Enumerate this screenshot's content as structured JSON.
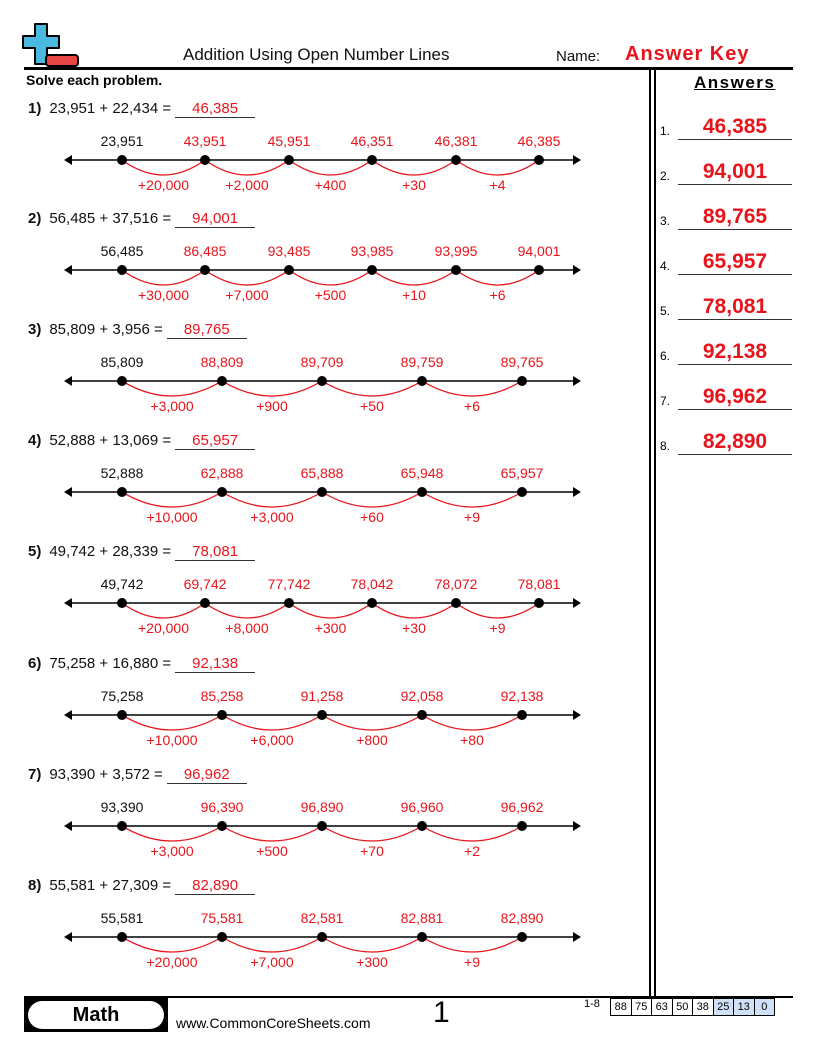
{
  "header": {
    "title": "Addition Using Open Number Lines",
    "name_label": "Name:",
    "name_value": "Answer Key",
    "instructions": "Solve each problem.",
    "answers_heading": "Answers"
  },
  "colors": {
    "accent": "#e8141b",
    "logo_blue": "#4bb8e0",
    "logo_red": "#e84545"
  },
  "problems": [
    {
      "num": "1)",
      "expr": "23,951 + 22,434 =",
      "answer": "46,385",
      "points": [
        "23,951",
        "43,951",
        "45,951",
        "46,351",
        "46,381",
        "46,385"
      ],
      "steps": [
        "+20,000",
        "+2,000",
        "+400",
        "+30",
        "+4"
      ]
    },
    {
      "num": "2)",
      "expr": "56,485 + 37,516 =",
      "answer": "94,001",
      "points": [
        "56,485",
        "86,485",
        "93,485",
        "93,985",
        "93,995",
        "94,001"
      ],
      "steps": [
        "+30,000",
        "+7,000",
        "+500",
        "+10",
        "+6"
      ]
    },
    {
      "num": "3)",
      "expr": "85,809 + 3,956 =",
      "answer": "89,765",
      "points": [
        "85,809",
        "88,809",
        "89,709",
        "89,759",
        "89,765"
      ],
      "steps": [
        "+3,000",
        "+900",
        "+50",
        "+6"
      ]
    },
    {
      "num": "4)",
      "expr": "52,888 + 13,069 =",
      "answer": "65,957",
      "points": [
        "52,888",
        "62,888",
        "65,888",
        "65,948",
        "65,957"
      ],
      "steps": [
        "+10,000",
        "+3,000",
        "+60",
        "+9"
      ]
    },
    {
      "num": "5)",
      "expr": "49,742 + 28,339 =",
      "answer": "78,081",
      "points": [
        "49,742",
        "69,742",
        "77,742",
        "78,042",
        "78,072",
        "78,081"
      ],
      "steps": [
        "+20,000",
        "+8,000",
        "+300",
        "+30",
        "+9"
      ]
    },
    {
      "num": "6)",
      "expr": "75,258 + 16,880 =",
      "answer": "92,138",
      "points": [
        "75,258",
        "85,258",
        "91,258",
        "92,058",
        "92,138"
      ],
      "steps": [
        "+10,000",
        "+6,000",
        "+800",
        "+80"
      ]
    },
    {
      "num": "7)",
      "expr": "93,390 + 3,572 =",
      "answer": "96,962",
      "points": [
        "93,390",
        "96,390",
        "96,890",
        "96,960",
        "96,962"
      ],
      "steps": [
        "+3,000",
        "+500",
        "+70",
        "+2"
      ]
    },
    {
      "num": "8)",
      "expr": "55,581 + 27,309 =",
      "answer": "82,890",
      "points": [
        "55,581",
        "75,581",
        "82,581",
        "82,881",
        "82,890"
      ],
      "steps": [
        "+20,000",
        "+7,000",
        "+300",
        "+9"
      ]
    }
  ],
  "answers": [
    {
      "n": "1.",
      "v": "46,385"
    },
    {
      "n": "2.",
      "v": "94,001"
    },
    {
      "n": "3.",
      "v": "89,765"
    },
    {
      "n": "4.",
      "v": "65,957"
    },
    {
      "n": "5.",
      "v": "78,081"
    },
    {
      "n": "6.",
      "v": "92,138"
    },
    {
      "n": "7.",
      "v": "96,962"
    },
    {
      "n": "8.",
      "v": "82,890"
    }
  ],
  "footer": {
    "subject": "Math",
    "site": "www.CommonCoreSheets.com",
    "page": "1",
    "range": "1-8",
    "scores": [
      "88",
      "75",
      "63",
      "50",
      "38",
      "25",
      "13",
      "0"
    ]
  }
}
